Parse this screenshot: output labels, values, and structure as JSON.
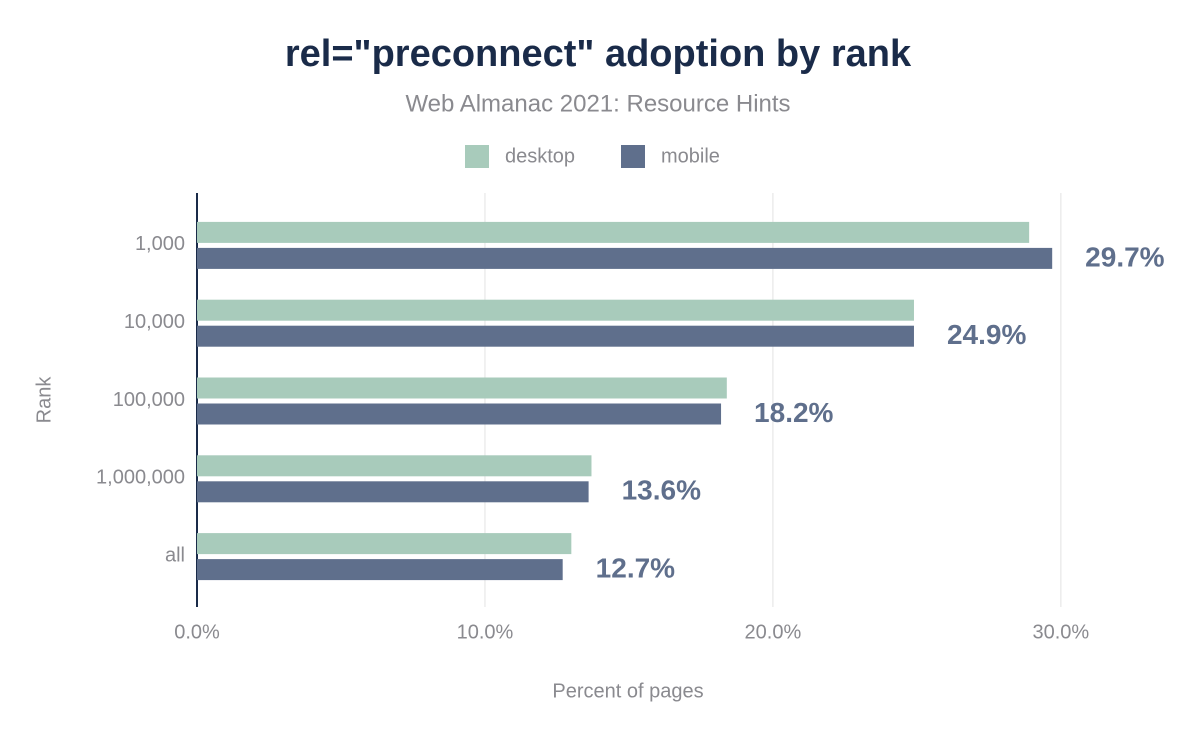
{
  "chart_data": {
    "type": "hbar",
    "title": "rel=\"preconnect\" adoption by rank",
    "subtitle": "Web Almanac 2021: Resource Hints",
    "x_label": "Percent of pages",
    "y_label": "Rank",
    "categories": [
      "1,000",
      "10,000",
      "100,000",
      "1,000,000",
      "all"
    ],
    "series": [
      {
        "name": "desktop",
        "color": "#a8cbbb",
        "values": [
          28.9,
          24.9,
          18.4,
          13.7,
          13.0
        ]
      },
      {
        "name": "mobile",
        "color": "#5f6f8c",
        "values": [
          29.7,
          24.9,
          18.2,
          13.6,
          12.7
        ],
        "value_labels": [
          "29.7%",
          "24.9%",
          "18.2%",
          "13.6%",
          "12.7%"
        ]
      }
    ],
    "xlim": [
      0,
      34
    ],
    "xticks": [
      {
        "value": 0,
        "label": "0.0%"
      },
      {
        "value": 10,
        "label": "10.0%"
      },
      {
        "value": 20,
        "label": "20.0%"
      },
      {
        "value": 30,
        "label": "30.0%"
      }
    ],
    "grid": true,
    "legend": "top"
  }
}
